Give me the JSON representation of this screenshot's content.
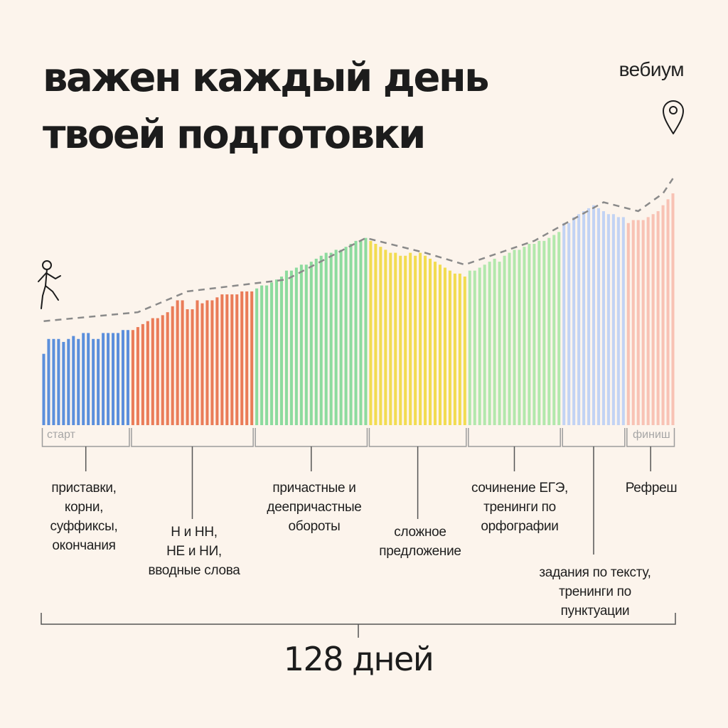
{
  "title_lines": [
    "важен каждый день",
    "твоей подготовки"
  ],
  "brand": "вебиум",
  "start_label": "старт",
  "finish_label": "финиш",
  "total_label": "128 дней",
  "phases": [
    {
      "caption": "приставки,\nкорни,\nсуффиксы,\nокончания",
      "color": "#5b8fdc"
    },
    {
      "caption": "Н и НН,\nНЕ и НИ,\nвводные слова",
      "color": "#ea7c58"
    },
    {
      "caption": "причастные и\nдеепричастные\nобороты",
      "color": "#8ddb9e"
    },
    {
      "caption": "сложное\nпредложение",
      "color": "#f2dc50"
    },
    {
      "caption": "сочинение ЕГЭ,\nтренинги по\nорфографии",
      "color": "#b2e8ac"
    },
    {
      "caption": "задания по тексту,\nтренинги по\nпунктуации",
      "color": "#c2d3f4"
    },
    {
      "caption": "Рефреш",
      "color": "#f8c2b4"
    }
  ],
  "chart_data": {
    "type": "bar",
    "x_range": [
      1,
      128
    ],
    "y_range": [
      0,
      100
    ],
    "series": [
      {
        "name": "приставки, корни, суффиксы, окончания",
        "color": "#5b8fdc",
        "values": [
          24,
          29,
          29,
          29,
          28,
          29,
          30,
          29,
          31,
          31,
          29,
          29,
          31,
          31,
          31,
          31,
          32,
          32
        ]
      },
      {
        "name": "Н и НН, НЕ и НИ, вводные слова",
        "color": "#ea7c58",
        "values": [
          32,
          33,
          34,
          35,
          36,
          36,
          37,
          38,
          40,
          42,
          42,
          39,
          39,
          42,
          41,
          42,
          42,
          43,
          44,
          44,
          44,
          44,
          45,
          45,
          45
        ]
      },
      {
        "name": "причастные и деепричастные обороты",
        "color": "#8ddb9e",
        "values": [
          46,
          47,
          47,
          48,
          49,
          50,
          52,
          52,
          53,
          54,
          54,
          55,
          56,
          57,
          58,
          58,
          59,
          59,
          60,
          61,
          62,
          62,
          63
        ]
      },
      {
        "name": "сложное предложение",
        "color": "#f2dc50",
        "values": [
          62,
          61,
          60,
          59,
          58,
          58,
          57,
          57,
          58,
          57,
          58,
          57,
          56,
          55,
          54,
          53,
          52,
          51,
          51,
          50
        ]
      },
      {
        "name": "сочинение ЕГЭ, тренинги по орфографии",
        "color": "#b2e8ac",
        "values": [
          52,
          52,
          53,
          54,
          55,
          56,
          55,
          57,
          58,
          59,
          59,
          60,
          61,
          61,
          62,
          62,
          63,
          64,
          65
        ]
      },
      {
        "name": "задания по тексту, тренинги по пунктуации",
        "color": "#c2d3f4",
        "values": [
          68,
          68,
          70,
          71,
          72,
          73,
          74,
          73,
          72,
          71,
          71,
          70,
          70
        ]
      },
      {
        "name": "Рефреш",
        "color": "#f8c2b4",
        "values": [
          68,
          69,
          69,
          69,
          70,
          71,
          72,
          74,
          76,
          78
        ]
      }
    ],
    "trend_line": {
      "style": "dashed",
      "color": "#888888",
      "points": [
        [
          1,
          35
        ],
        [
          20,
          38
        ],
        [
          30,
          45
        ],
        [
          50,
          49
        ],
        [
          66,
          63
        ],
        [
          78,
          58
        ],
        [
          86,
          54
        ],
        [
          100,
          62
        ],
        [
          114,
          75
        ],
        [
          121,
          72
        ],
        [
          126,
          78
        ],
        [
          128,
          83
        ]
      ]
    },
    "milestones": [
      "walker-figure",
      "location-pin"
    ]
  }
}
